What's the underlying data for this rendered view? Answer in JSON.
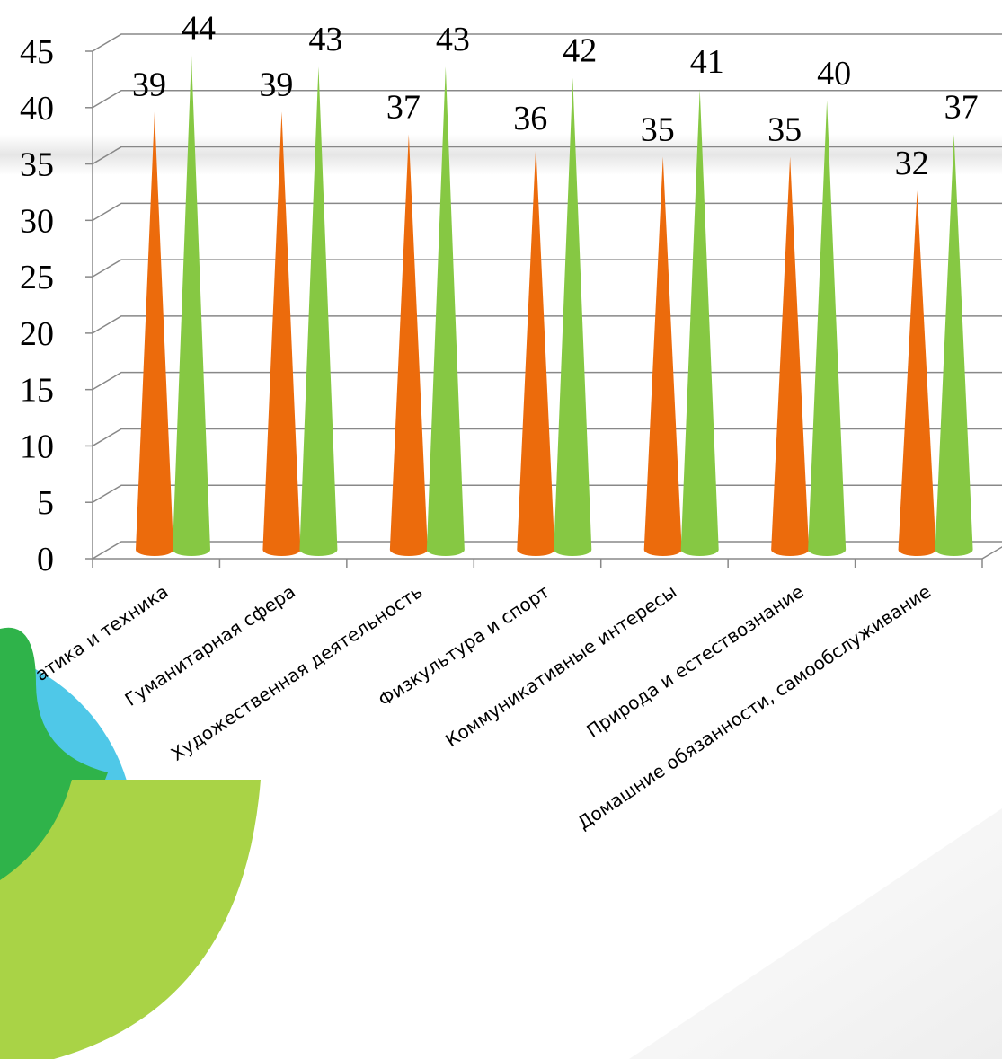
{
  "chart_data": {
    "type": "cone",
    "categories": [
      "атика и техника",
      "Гуманитарная сфера",
      "Художественная деятельность",
      "Физкультура и спорт",
      "Коммуникативные интересы",
      "Природа и естествознание",
      "Домашние обязанности, самообслуживание"
    ],
    "series": [
      {
        "color": "#ec6b0c",
        "values": [
          39,
          39,
          37,
          36,
          35,
          35,
          32
        ]
      },
      {
        "color": "#86c843",
        "values": [
          44,
          43,
          43,
          42,
          41,
          40,
          37
        ]
      }
    ],
    "ylim": [
      0,
      45
    ],
    "yticks": [
      0,
      5,
      10,
      15,
      20,
      25,
      30,
      35,
      40,
      45
    ],
    "grid": true
  }
}
